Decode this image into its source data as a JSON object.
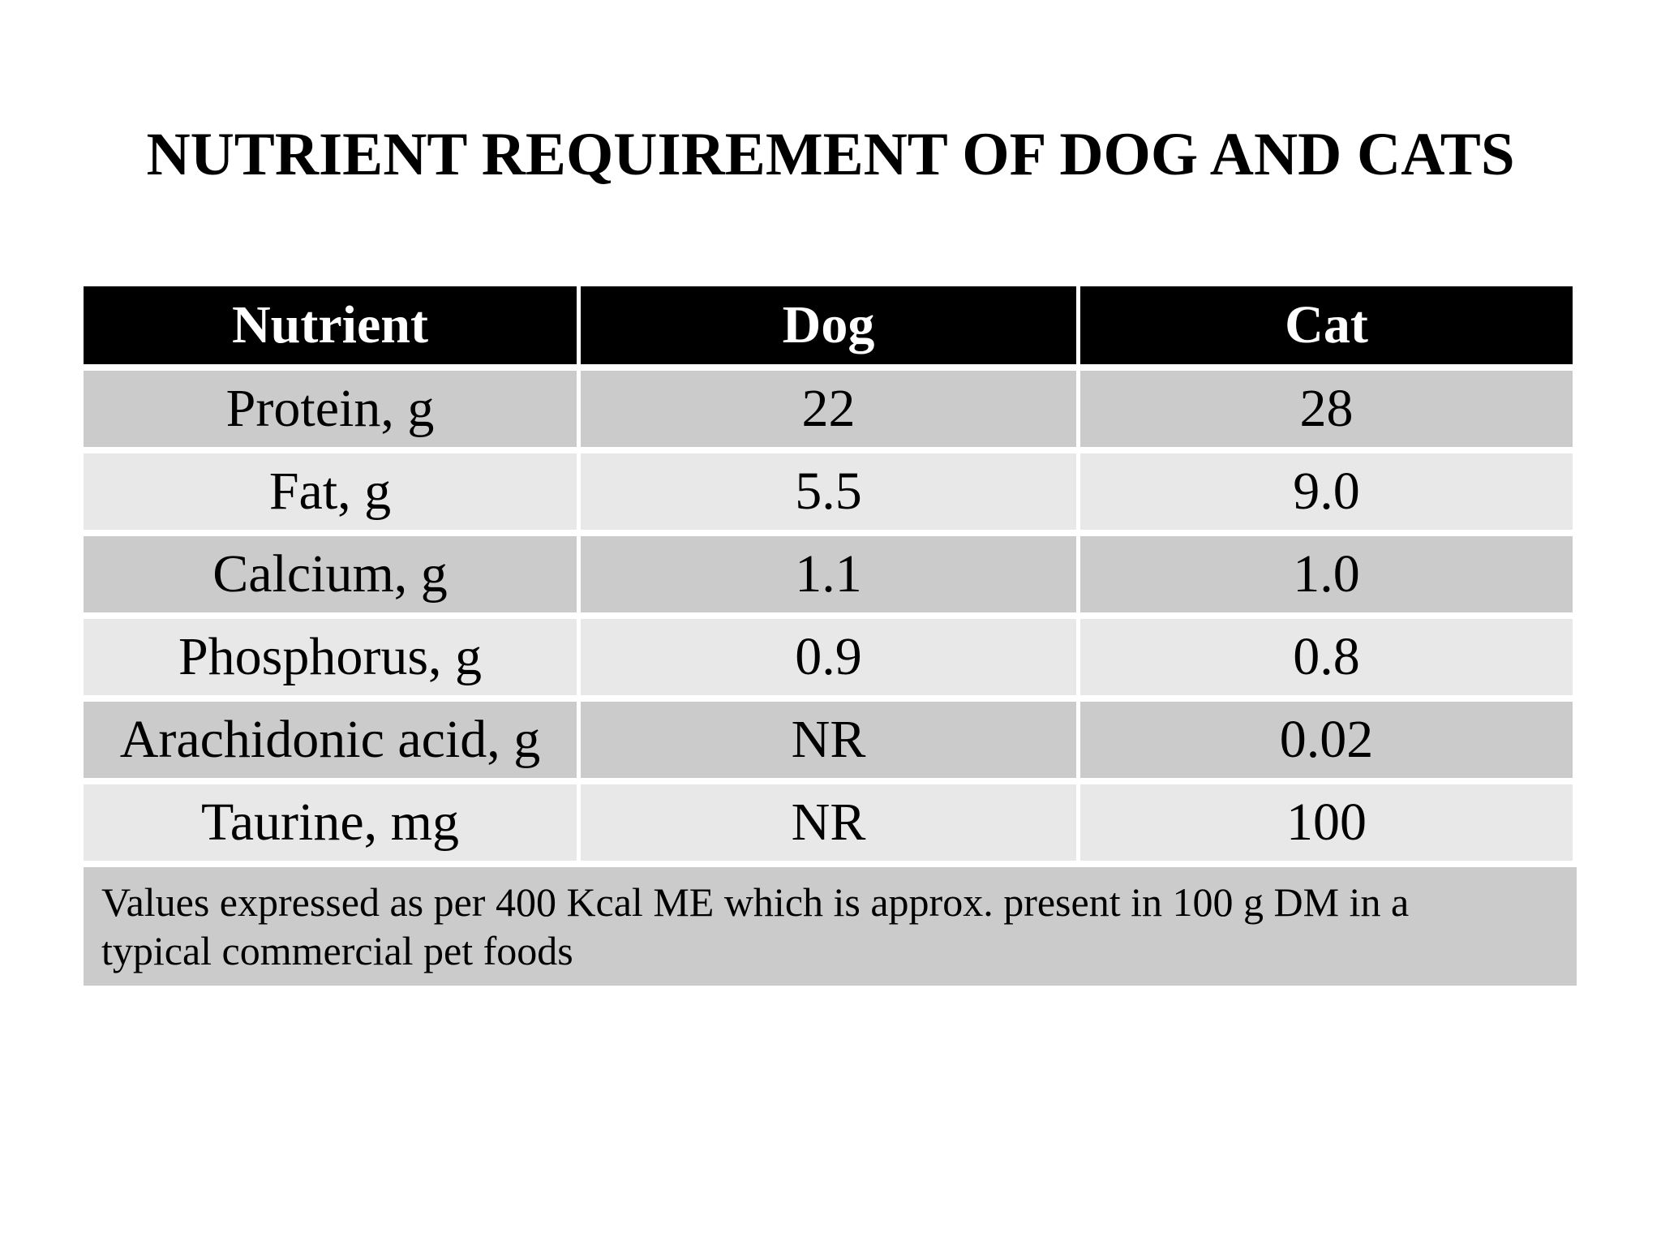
{
  "title": "NUTRIENT REQUIREMENT OF DOG AND CATS",
  "table": {
    "columns": [
      "Nutrient",
      "Dog",
      "Cat"
    ],
    "rows": [
      {
        "nutrient": "Protein, g",
        "dog": "22",
        "cat": "28"
      },
      {
        "nutrient": "Fat, g",
        "dog": "5.5",
        "cat": "9.0"
      },
      {
        "nutrient": "Calcium, g",
        "dog": "1.1",
        "cat": "1.0"
      },
      {
        "nutrient": "Phosphorus, g",
        "dog": "0.9",
        "cat": "0.8"
      },
      {
        "nutrient": "Arachidonic acid, g",
        "dog": "NR",
        "cat": "0.02"
      },
      {
        "nutrient": "Taurine, mg",
        "dog": "NR",
        "cat": "100"
      }
    ],
    "footnote_lines": [
      "Values expressed as per 400 Kcal ME which is approx. present in 100 g DM in a",
      "typical commercial pet foods"
    ]
  },
  "colors": {
    "page_bg": "#ffffff",
    "header_bg": "#000000",
    "header_text": "#ffffff",
    "row_dark": "#cbcbcb",
    "row_light": "#e8e8e8",
    "footnote_bg": "#cbcbcb",
    "text": "#000000"
  }
}
